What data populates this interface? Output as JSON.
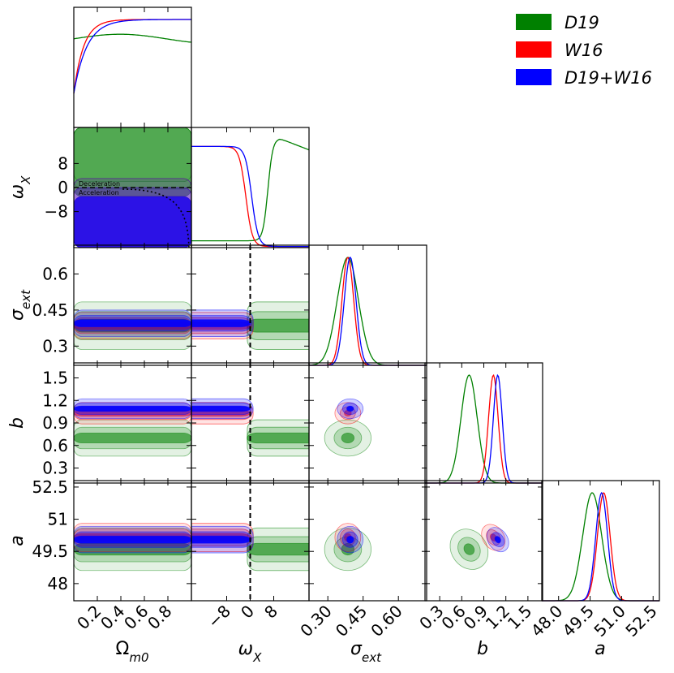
{
  "chart_data": {
    "type": "corner-plot",
    "parameters": [
      {
        "key": "Om",
        "label": "Ω",
        "sub": "m0",
        "range": [
          0,
          1
        ],
        "ticks": [
          "0.2",
          "0.4",
          "0.6",
          "0.8"
        ],
        "tickvals": [
          0.2,
          0.4,
          0.6,
          0.8
        ]
      },
      {
        "key": "wX",
        "label": "ω",
        "sub": "X",
        "range": [
          -20,
          20
        ],
        "ticks": [
          "−8",
          "0",
          "8"
        ],
        "tickvals": [
          -8,
          0,
          8
        ]
      },
      {
        "key": "sig",
        "label": "σ",
        "sub": "ext",
        "range": [
          0.22,
          0.72
        ],
        "ticks": [
          "0.30",
          "0.45",
          "0.60"
        ],
        "tickvals": [
          0.3,
          0.45,
          0.6
        ]
      },
      {
        "key": "b",
        "label": "b",
        "sub": "",
        "range": [
          0.1,
          1.7
        ],
        "ticks": [
          "0.3",
          "0.6",
          "0.9",
          "1.2",
          "1.5"
        ],
        "tickvals": [
          0.3,
          0.6,
          0.9,
          1.2,
          1.5
        ]
      },
      {
        "key": "a",
        "label": "a",
        "sub": "",
        "range": [
          47.2,
          52.8
        ],
        "ticks": [
          "48.0",
          "49.5",
          "51.0",
          "52.5"
        ],
        "tickvals": [
          48.0,
          49.5,
          51.0,
          52.5
        ]
      }
    ],
    "y_axis_ticks": {
      "wX": {
        "labels": [
          "8",
          "0",
          "−8"
        ],
        "values": [
          8,
          0,
          -8
        ]
      },
      "sig": {
        "labels": [
          "0.6",
          "0.45",
          "0.3"
        ],
        "values": [
          0.6,
          0.45,
          0.3
        ]
      },
      "b": {
        "labels": [
          "1.5",
          "1.2",
          "0.9",
          "0.6",
          "0.3"
        ],
        "values": [
          1.5,
          1.2,
          0.9,
          0.6,
          0.3
        ]
      },
      "a": {
        "labels": [
          "52.5",
          "51",
          "49.5",
          "48"
        ],
        "values": [
          52.5,
          51,
          49.5,
          48
        ]
      }
    },
    "series": [
      {
        "name": "D19",
        "prefix": "D19",
        "suffix": "",
        "color": "#008000",
        "mean": {
          "Om": 0.5,
          "wX": 10,
          "sig": 0.385,
          "b": 0.7,
          "a": 49.6
        },
        "sd": {
          "sig": 0.045,
          "b": 0.11,
          "a": 0.45
        }
      },
      {
        "name": "W16",
        "prefix": "W16",
        "suffix": "",
        "color": "#ff0000",
        "mean": {
          "Om": 0.5,
          "wX": -8,
          "sig": 0.385,
          "b": 1.03,
          "a": 50.15
        },
        "sd": {
          "sig": 0.025,
          "b": 0.065,
          "a": 0.3
        }
      },
      {
        "name": "D19+W16",
        "prefix": "D19",
        "suffix": "+W16",
        "color": "#0000ff",
        "mean": {
          "Om": 0.5,
          "wX": -8,
          "sig": 0.395,
          "b": 1.09,
          "a": 50.05
        },
        "sd": {
          "sig": 0.025,
          "b": 0.06,
          "a": 0.28
        }
      }
    ],
    "annotations": {
      "deceleration": "Deceleration",
      "acceleration": "Acceleration"
    },
    "legend_position": "top-right"
  }
}
